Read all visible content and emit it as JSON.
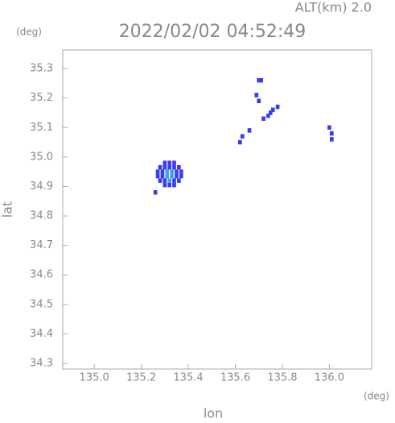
{
  "chart_data": {
    "type": "scatter",
    "title": "2022/02/02 04:52:49",
    "subtitle": "ALT(km) 2.0",
    "x_unit": "(deg)",
    "y_unit": "(deg)",
    "xlabel": "lon",
    "ylabel": "lat",
    "xlim": [
      134.866,
      136.18
    ],
    "ylim": [
      34.281,
      35.363
    ],
    "xticks": [
      {
        "value": 135.0,
        "label": "135.0"
      },
      135.2,
      135.4,
      135.6,
      135.8,
      {
        "value": 136.0,
        "label": "136.0"
      }
    ],
    "yticks": [
      34.3,
      34.4,
      34.5,
      34.6,
      34.7,
      34.8,
      34.9,
      {
        "value": 35.0,
        "label": "35.0"
      },
      35.1,
      35.2,
      35.3
    ],
    "series": [
      {
        "color": "#3a3af5",
        "x": [
          135.3,
          135.32,
          135.34,
          135.28,
          135.3,
          135.32,
          135.34,
          135.36,
          135.27,
          135.29,
          135.35,
          135.37,
          135.27,
          135.29,
          135.35,
          135.37,
          135.28,
          135.3,
          135.34,
          135.36,
          135.3,
          135.32,
          135.34,
          135.26,
          135.7,
          135.71,
          135.69,
          135.7,
          135.72,
          135.74,
          135.76,
          135.78,
          135.75,
          135.63,
          135.66,
          135.62,
          136.0,
          136.01,
          136.01
        ],
        "values": [
          34.98,
          34.98,
          34.98,
          34.965,
          34.965,
          34.965,
          34.965,
          34.965,
          34.95,
          34.95,
          34.95,
          34.95,
          34.935,
          34.935,
          34.935,
          34.935,
          34.92,
          34.92,
          34.92,
          34.92,
          34.905,
          34.905,
          34.905,
          34.88,
          35.26,
          35.26,
          35.21,
          35.19,
          35.13,
          35.14,
          35.16,
          35.17,
          35.15,
          35.07,
          35.09,
          35.05,
          35.1,
          35.08,
          35.06
        ]
      },
      {
        "color": "#3fa0e8",
        "x": [
          135.31,
          135.33,
          135.31,
          135.33,
          135.32
        ],
        "values": [
          34.95,
          34.95,
          34.935,
          34.935,
          34.92
        ]
      }
    ]
  }
}
